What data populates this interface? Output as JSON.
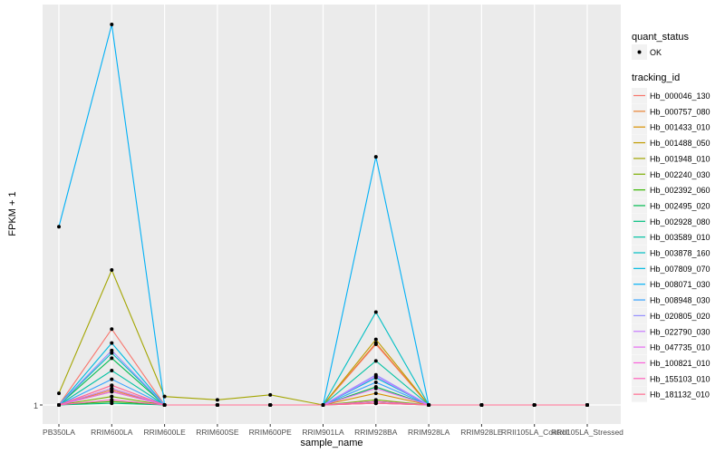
{
  "chart_data": {
    "type": "line",
    "xlabel": "sample_name",
    "ylabel": "FPKM + 1",
    "y_scale": "log10",
    "y_ticks": [
      "1"
    ],
    "grid": true,
    "legend_position": "right",
    "categories": [
      "PB350LA",
      "RRIM600LA",
      "RRIM600LE",
      "RRIM600SE",
      "RRIM600PE",
      "RRIM901LA",
      "RRIM928BA",
      "RRIM928LA",
      "RRIM928LE",
      "RRII105LA_Control",
      "RRII105LA_Stressed"
    ],
    "legend_shape": {
      "title": "quant_status",
      "entries": [
        "OK"
      ]
    },
    "legend_title": "tracking_id",
    "series": [
      {
        "name": "Hb_000046_130",
        "color": "#F8766D",
        "values": [
          1,
          1.55,
          1,
          1,
          1,
          1,
          1.42,
          1,
          1,
          1,
          1
        ]
      },
      {
        "name": "Hb_000757_080",
        "color": "#EA8331",
        "values": [
          1,
          1.09,
          1,
          1,
          1,
          1,
          1.43,
          1,
          1,
          1,
          1
        ]
      },
      {
        "name": "Hb_001433_010",
        "color": "#D89000",
        "values": [
          1,
          1.08,
          1,
          1,
          1,
          1,
          1.07,
          1,
          1,
          1,
          1
        ]
      },
      {
        "name": "Hb_001488_050",
        "color": "#C09B00",
        "values": [
          1,
          1.1,
          1,
          1,
          1,
          1,
          1.46,
          1,
          1,
          1,
          1
        ]
      },
      {
        "name": "Hb_001948_010",
        "color": "#A3A500",
        "values": [
          1.07,
          2.18,
          1.05,
          1.03,
          1.06,
          1,
          1.02,
          1,
          1,
          1,
          1
        ]
      },
      {
        "name": "Hb_002240_030",
        "color": "#7CAE00",
        "values": [
          1,
          1.05,
          1,
          1,
          1,
          1,
          1.03,
          1,
          1,
          1,
          1
        ]
      },
      {
        "name": "Hb_002392_060",
        "color": "#39B600",
        "values": [
          1,
          1.02,
          1,
          1,
          1,
          1,
          1.01,
          1,
          1,
          1,
          1
        ]
      },
      {
        "name": "Hb_002495_020",
        "color": "#00BB4E",
        "values": [
          1,
          1.31,
          1,
          1,
          1,
          1,
          1.11,
          1,
          1,
          1,
          1
        ]
      },
      {
        "name": "Hb_002928_080",
        "color": "#00BF7D",
        "values": [
          1,
          1.01,
          1,
          1,
          1,
          1,
          1.02,
          1,
          1,
          1,
          1
        ]
      },
      {
        "name": "Hb_003589_010",
        "color": "#00C1A3",
        "values": [
          1,
          1.22,
          1,
          1,
          1,
          1,
          1.29,
          1,
          1,
          1,
          1
        ]
      },
      {
        "name": "Hb_003878_160",
        "color": "#00BFC4",
        "values": [
          1,
          1.35,
          1,
          1,
          1,
          1,
          1.71,
          1,
          1,
          1,
          1
        ]
      },
      {
        "name": "Hb_007809_070",
        "color": "#00BAE0",
        "values": [
          1,
          1.43,
          1,
          1,
          1,
          1,
          1.17,
          1,
          1,
          1,
          1
        ]
      },
      {
        "name": "Hb_008071_030",
        "color": "#00B0F6",
        "values": [
          2.8,
          9.0,
          1,
          1,
          1,
          1,
          4.19,
          1,
          1,
          1,
          1
        ]
      },
      {
        "name": "Hb_008948_030",
        "color": "#35A2FF",
        "values": [
          1,
          1.16,
          1,
          1,
          1,
          1,
          1.14,
          1,
          1,
          1,
          1
        ]
      },
      {
        "name": "Hb_020805_020",
        "color": "#9590FF",
        "values": [
          1,
          1.37,
          1,
          1,
          1,
          1,
          1.19,
          1,
          1,
          1,
          1
        ]
      },
      {
        "name": "Hb_022790_030",
        "color": "#C77CFF",
        "values": [
          1,
          1.1,
          1,
          1,
          1,
          1,
          1.18,
          1,
          1,
          1,
          1
        ]
      },
      {
        "name": "Hb_047735_010",
        "color": "#E76BF3",
        "values": [
          1,
          1.08,
          1,
          1,
          1,
          1,
          1.1,
          1,
          1,
          1,
          1
        ]
      },
      {
        "name": "Hb_100821_010",
        "color": "#FA62DB",
        "values": [
          1,
          1.12,
          1,
          1,
          1,
          1,
          1.02,
          1,
          1,
          1,
          1
        ]
      },
      {
        "name": "Hb_155103_010",
        "color": "#FF62BC",
        "values": [
          1,
          1.03,
          1,
          1,
          1,
          1,
          1.01,
          1,
          1,
          1,
          1
        ]
      },
      {
        "name": "Hb_181132_010",
        "color": "#FF6C91",
        "values": [
          1,
          1.12,
          1,
          1,
          1,
          1,
          1.01,
          1,
          1,
          1,
          1
        ]
      }
    ]
  }
}
